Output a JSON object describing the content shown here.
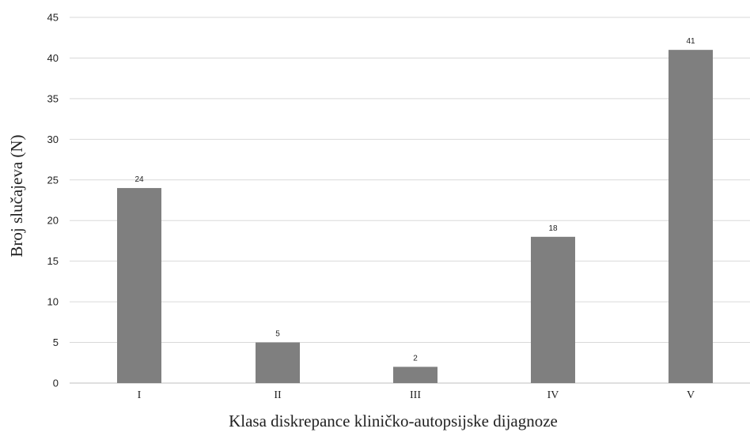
{
  "chart_data": {
    "type": "bar",
    "categories": [
      "I",
      "II",
      "III",
      "IV",
      "V"
    ],
    "values": [
      24,
      5,
      2,
      18,
      41
    ],
    "data_labels": [
      "24",
      "5",
      "2",
      "18",
      "41"
    ],
    "title": "",
    "xlabel": "Klasa diskrepance kliničko-autopsijske dijagnoze",
    "ylabel": "Broj slučajeva (N)",
    "ylim": [
      0,
      45
    ],
    "yticks": [
      0,
      5,
      10,
      15,
      20,
      25,
      30,
      35,
      40,
      45
    ],
    "ytick_labels": [
      "0",
      "5",
      "10",
      "15",
      "20",
      "25",
      "30",
      "35",
      "40",
      "45"
    ],
    "grid": true,
    "legend": "none",
    "colors": {
      "bar": "#7f7f7f",
      "grid": "#d9d9d9",
      "text": "#222222"
    }
  }
}
